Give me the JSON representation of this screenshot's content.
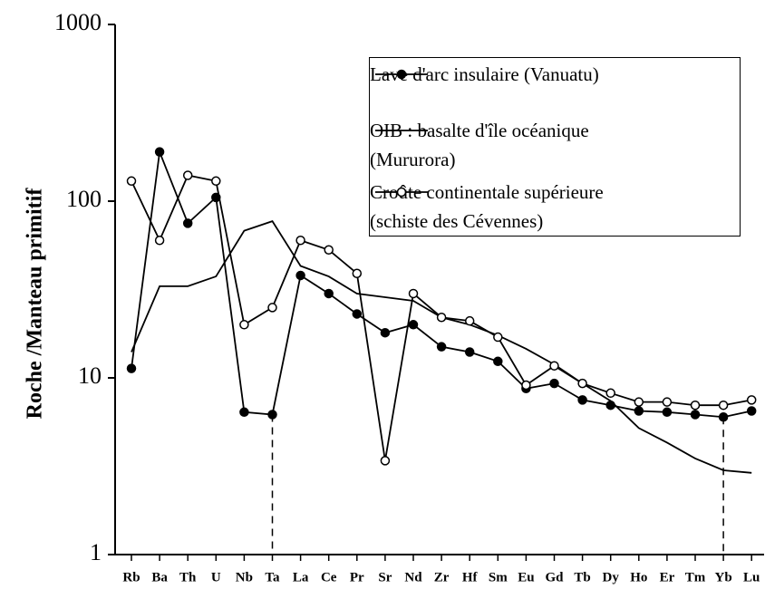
{
  "chart_data": {
    "type": "line",
    "yscale": "log",
    "ylabel": "Roche /Manteau primitif",
    "categories": [
      "Rb",
      "Ba",
      "Th",
      "U",
      "Nb",
      "Ta",
      "La",
      "Ce",
      "Pr",
      "Sr",
      "Nd",
      "Zr",
      "Hf",
      "Sm",
      "Eu",
      "Gd",
      "Tb",
      "Dy",
      "Ho",
      "Er",
      "Tm",
      "Yb",
      "Lu"
    ],
    "ylim": [
      1,
      1000
    ],
    "yticks": [
      1,
      10,
      100,
      1000
    ],
    "legend": "upper right",
    "series": [
      {
        "name": "Lave d'arc insulaire (Vanuatu)",
        "color": "#000000",
        "marker": "filled",
        "values": [
          11.3,
          190,
          75,
          105,
          6.4,
          6.2,
          38,
          30,
          23,
          18,
          20,
          15,
          14,
          12.4,
          8.7,
          9.3,
          7.5,
          7.0,
          6.5,
          6.4,
          6.2,
          6.0,
          6.5
        ]
      },
      {
        "name": "OIB : basalte d'île océanique\n(Mururora)",
        "color": "#000000",
        "marker": "none",
        "values": [
          14,
          33,
          33,
          37.5,
          68,
          77,
          43,
          37.5,
          30,
          28.6,
          27.3,
          22,
          20,
          17.4,
          14.6,
          11.9,
          9.3,
          7.4,
          5.2,
          4.3,
          3.5,
          3.0,
          2.9
        ]
      },
      {
        "name": "Croûte continentale supérieure\n(schiste des Cévennes)",
        "color": "#000000",
        "marker": "open",
        "values": [
          130,
          60,
          140,
          130,
          20,
          25,
          60,
          53,
          39,
          3.4,
          30,
          22,
          21,
          17,
          9.1,
          11.7,
          9.3,
          8.2,
          7.3,
          7.3,
          7.0,
          7.0,
          7.5
        ]
      }
    ]
  }
}
